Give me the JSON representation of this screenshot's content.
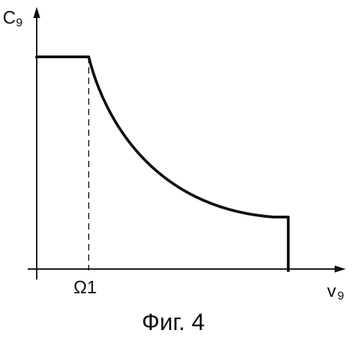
{
  "chart_data": {
    "type": "line",
    "xlabel": "v",
    "xlabel_sub": "9",
    "ylabel": "C",
    "ylabel_sub": "9",
    "x_tick_label": "Ω1",
    "caption": "Фиг. 4",
    "grid": false,
    "legend": "none",
    "line_color": "#111111",
    "axis_color": "#111111"
  }
}
